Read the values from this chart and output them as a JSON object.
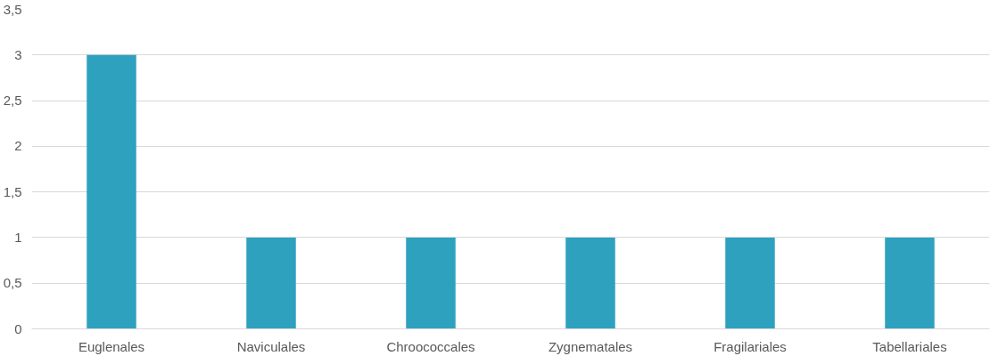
{
  "chart_data": {
    "type": "bar",
    "categories": [
      "Euglenales",
      "Naviculales",
      "Chroococcales",
      "Zygnematales",
      "Fragilariales",
      "Tabellariales"
    ],
    "values": [
      3,
      1,
      1,
      1,
      1,
      1
    ],
    "color": "#2ea1bf",
    "ylim": [
      0,
      3.5
    ],
    "yticks": [
      0,
      {
        "value": 0.5,
        "label": "0,5"
      },
      1,
      {
        "value": 1.5,
        "label": "1,5"
      },
      2,
      {
        "value": 2.5,
        "label": "2,5"
      },
      3,
      {
        "value": 3.5,
        "label": "3,5"
      }
    ],
    "grid": "y"
  }
}
